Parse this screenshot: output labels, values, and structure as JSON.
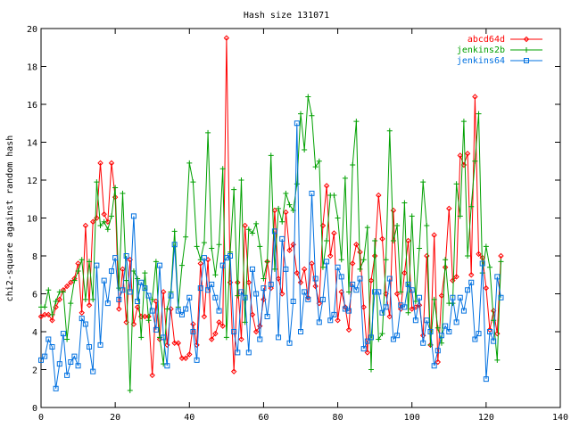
{
  "chart_data": {
    "type": "line",
    "title": "Hash size 131071",
    "xlabel": "",
    "ylabel": "chi2-square against random hash",
    "xlim": [
      0,
      140
    ],
    "ylim": [
      0,
      20
    ],
    "x_ticks": [
      0,
      20,
      40,
      60,
      80,
      100,
      120,
      140
    ],
    "y_ticks": [
      0,
      2,
      4,
      6,
      8,
      10,
      12,
      14,
      16,
      18,
      20
    ],
    "x_tick_labels": [
      "0",
      "20",
      "40",
      "60",
      "80",
      "100",
      "120",
      "140"
    ],
    "y_tick_labels": [
      "0",
      "2",
      "4",
      "6",
      "8",
      "10",
      "12",
      "14",
      "16",
      "18",
      "20"
    ],
    "grid": false,
    "legend_position": "top-right",
    "series": [
      {
        "name": "abcd64d",
        "color": "#ff0000",
        "marker": "diamond",
        "values": [
          4.8,
          4.9,
          4.9,
          4.6,
          5.3,
          5.7,
          6.2,
          6.4,
          6.6,
          6.8,
          7.6,
          5.0,
          9.6,
          5.4,
          9.8,
          10.0,
          12.9,
          10.2,
          9.8,
          12.9,
          11.1,
          5.2,
          7.3,
          4.5,
          7.8,
          4.4,
          5.3,
          4.8,
          4.8,
          4.8,
          1.7,
          5.6,
          3.6,
          6.1,
          3.3,
          5.2,
          3.4,
          3.4,
          2.6,
          2.6,
          2.8,
          4.4,
          3.3,
          7.6,
          4.8,
          7.8,
          3.6,
          3.9,
          4.5,
          4.3,
          19.5,
          6.6,
          1.9,
          6.6,
          3.6,
          9.6,
          6.6,
          4.9,
          4.0,
          4.3,
          5.7,
          7.7,
          6.3,
          10.4,
          6.8,
          6.0,
          10.3,
          8.3,
          8.6,
          7.1,
          6.6,
          7.3,
          5.8,
          7.6,
          6.4,
          5.5,
          9.6,
          11.7,
          8.0,
          9.2,
          4.6,
          6.1,
          5.3,
          4.1,
          7.6,
          8.6,
          8.2,
          5.3,
          2.9,
          6.7,
          8.0,
          11.2,
          8.9,
          6.0,
          4.8,
          10.4,
          6.0,
          5.2,
          7.1,
          8.8,
          5.2,
          5.3,
          5.4,
          3.8,
          8.0,
          3.3,
          9.1,
          2.4,
          5.9,
          7.4,
          10.5,
          6.7,
          6.9,
          13.3,
          12.8,
          13.4,
          7.0,
          16.4,
          8.1,
          7.9,
          6.3,
          4.1,
          5.1,
          3.9,
          8.0
        ]
      },
      {
        "name": "jenkins2b",
        "color": "#00a000",
        "marker": "plus",
        "values": [
          5.3,
          5.3,
          6.2,
          4.9,
          5.6,
          6.1,
          6.1,
          3.6,
          5.5,
          6.7,
          7.2,
          7.8,
          5.7,
          7.7,
          5.7,
          11.9,
          9.6,
          9.8,
          9.4,
          10.1,
          11.6,
          6.3,
          11.3,
          6.7,
          0.9,
          7.2,
          6.8,
          3.7,
          7.1,
          4.6,
          5.7,
          7.7,
          3.7,
          2.3,
          5.2,
          6.1,
          9.3,
          5.3,
          7.5,
          9.0,
          12.9,
          11.9,
          8.5,
          7.8,
          8.7,
          14.5,
          8.4,
          7.0,
          8.6,
          12.6,
          3.7,
          8.2,
          11.5,
          5.9,
          12.0,
          4.5,
          9.4,
          9.2,
          9.7,
          8.5,
          6.8,
          7.7,
          13.3,
          7.3,
          10.5,
          9.8,
          11.3,
          10.7,
          10.4,
          11.8,
          15.5,
          13.6,
          16.4,
          15.4,
          12.7,
          13.0,
          7.4,
          8.8,
          11.2,
          11.2,
          10.0,
          7.8,
          12.1,
          6.1,
          12.8,
          15.1,
          7.3,
          7.8,
          9.5,
          2.0,
          8.8,
          3.6,
          3.9,
          7.8,
          14.6,
          8.8,
          9.6,
          6.1,
          10.8,
          5.0,
          10.1,
          5.6,
          8.4,
          11.9,
          9.6,
          3.3,
          5.7,
          4.2,
          3.4,
          7.8,
          5.5,
          5.5,
          11.8,
          10.1,
          15.1,
          8.0,
          10.6,
          13.0,
          15.5,
          7.1,
          8.5,
          7.4,
          4.6,
          2.5,
          7.7
        ]
      },
      {
        "name": "jenkins64",
        "color": "#0070e0",
        "marker": "square",
        "values": [
          2.5,
          2.7,
          3.6,
          3.2,
          1.0,
          2.3,
          3.9,
          1.7,
          2.4,
          2.7,
          2.2,
          4.7,
          4.4,
          3.2,
          1.9,
          7.5,
          3.3,
          6.7,
          5.5,
          7.2,
          7.9,
          5.7,
          6.2,
          8.0,
          6.1,
          10.1,
          5.6,
          6.6,
          6.3,
          5.9,
          5.1,
          4.1,
          7.5,
          3.7,
          2.2,
          5.9,
          8.6,
          5.1,
          4.9,
          5.2,
          5.8,
          4.0,
          2.5,
          6.3,
          7.9,
          6.2,
          6.5,
          5.8,
          5.1,
          7.5,
          7.9,
          8.0,
          4.0,
          2.9,
          6.1,
          5.8,
          2.9,
          7.3,
          6.0,
          3.6,
          6.3,
          4.8,
          6.5,
          9.3,
          3.7,
          8.9,
          7.3,
          3.4,
          5.6,
          15.0,
          4.0,
          6.1,
          5.7,
          11.3,
          6.8,
          4.5,
          5.7,
          7.7,
          4.6,
          4.9,
          7.4,
          6.9,
          5.2,
          5.1,
          6.5,
          6.2,
          6.8,
          3.1,
          3.5,
          3.7,
          6.1,
          6.1,
          5.0,
          5.3,
          6.8,
          3.6,
          3.8,
          5.4,
          5.3,
          6.5,
          6.2,
          4.6,
          5.8,
          3.4,
          4.6,
          4.0,
          2.2,
          3.0,
          3.8,
          4.3,
          4.0,
          5.8,
          4.5,
          5.8,
          5.1,
          6.2,
          6.6,
          3.6,
          3.9,
          7.6,
          1.5,
          4.0,
          3.5,
          6.9,
          5.8
        ]
      }
    ]
  }
}
